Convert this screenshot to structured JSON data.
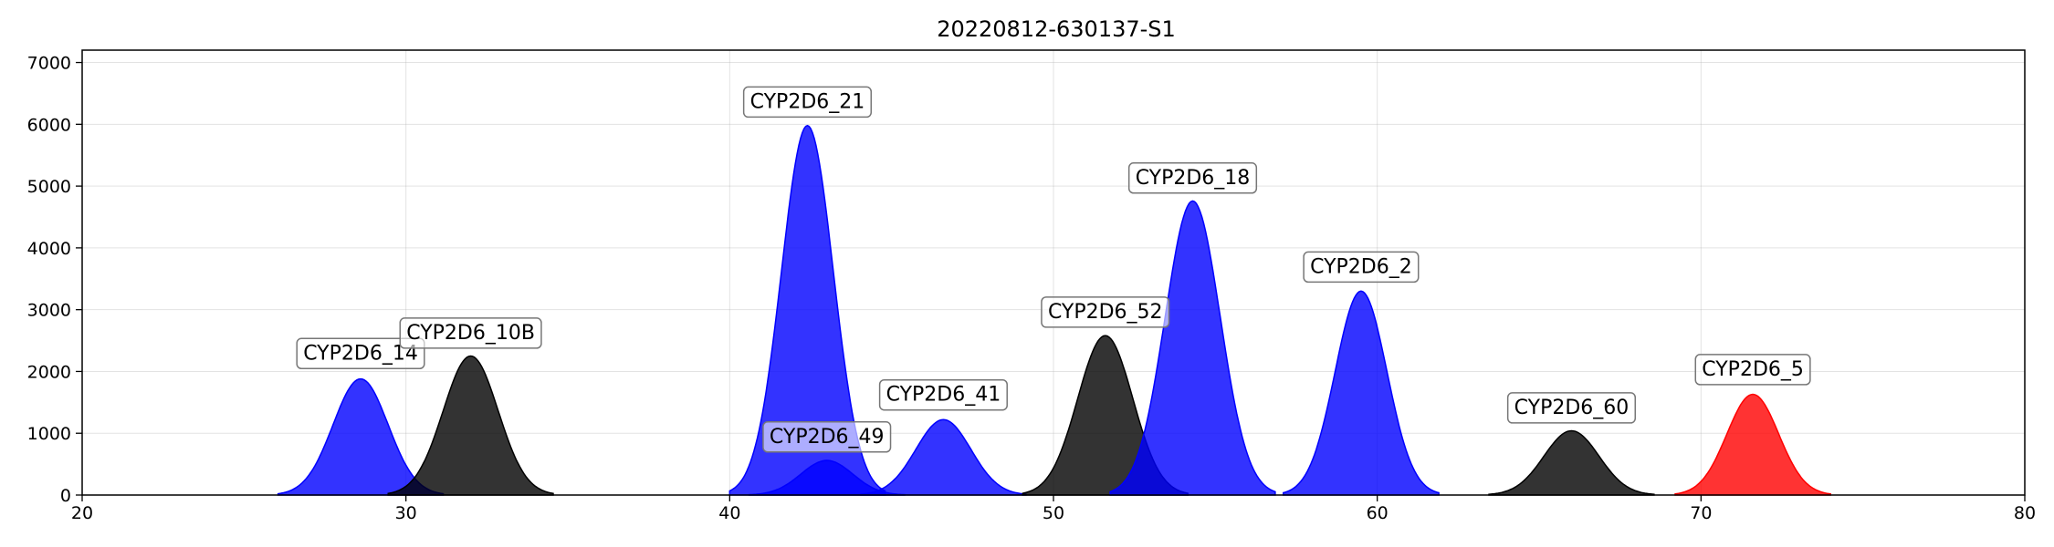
{
  "chart_data": {
    "type": "area",
    "title": "20220812-630137-S1",
    "xlabel": "",
    "ylabel": "",
    "xlim": [
      20,
      80
    ],
    "ylim": [
      0,
      7200
    ],
    "xticks": [
      20,
      30,
      40,
      50,
      60,
      70,
      80
    ],
    "yticks": [
      0,
      1000,
      2000,
      3000,
      4000,
      5000,
      6000,
      7000
    ],
    "grid": true,
    "colors": {
      "blue": "#0000ff",
      "black": "#000000",
      "red": "#ff0000"
    },
    "peaks": [
      {
        "label": "CYP2D6_14",
        "center": 28.6,
        "height": 1880,
        "sigma": 0.85,
        "color": "blue",
        "label_x": 28.6,
        "label_y": 2290
      },
      {
        "label": "CYP2D6_10B",
        "center": 32.0,
        "height": 2250,
        "sigma": 0.85,
        "color": "black",
        "label_x": 32.0,
        "label_y": 2620
      },
      {
        "label": "CYP2D6_21",
        "center": 42.4,
        "height": 5980,
        "sigma": 0.8,
        "color": "blue",
        "label_x": 42.4,
        "label_y": 6360
      },
      {
        "label": "CYP2D6_49",
        "center": 43.0,
        "height": 560,
        "sigma": 0.8,
        "color": "blue",
        "label_x": 43.0,
        "label_y": 940
      },
      {
        "label": "CYP2D6_41",
        "center": 46.6,
        "height": 1220,
        "sigma": 0.85,
        "color": "blue",
        "label_x": 46.6,
        "label_y": 1620
      },
      {
        "label": "CYP2D6_52",
        "center": 51.6,
        "height": 2580,
        "sigma": 0.85,
        "color": "black",
        "label_x": 51.6,
        "label_y": 2960
      },
      {
        "label": "CYP2D6_18",
        "center": 54.3,
        "height": 4760,
        "sigma": 0.85,
        "color": "blue",
        "label_x": 54.3,
        "label_y": 5130
      },
      {
        "label": "CYP2D6_2",
        "center": 59.5,
        "height": 3300,
        "sigma": 0.8,
        "color": "blue",
        "label_x": 59.5,
        "label_y": 3690
      },
      {
        "label": "CYP2D6_60",
        "center": 66.0,
        "height": 1040,
        "sigma": 0.85,
        "color": "black",
        "label_x": 66.0,
        "label_y": 1410
      },
      {
        "label": "CYP2D6_5",
        "center": 71.6,
        "height": 1630,
        "sigma": 0.8,
        "color": "red",
        "label_x": 71.6,
        "label_y": 2030
      }
    ]
  }
}
